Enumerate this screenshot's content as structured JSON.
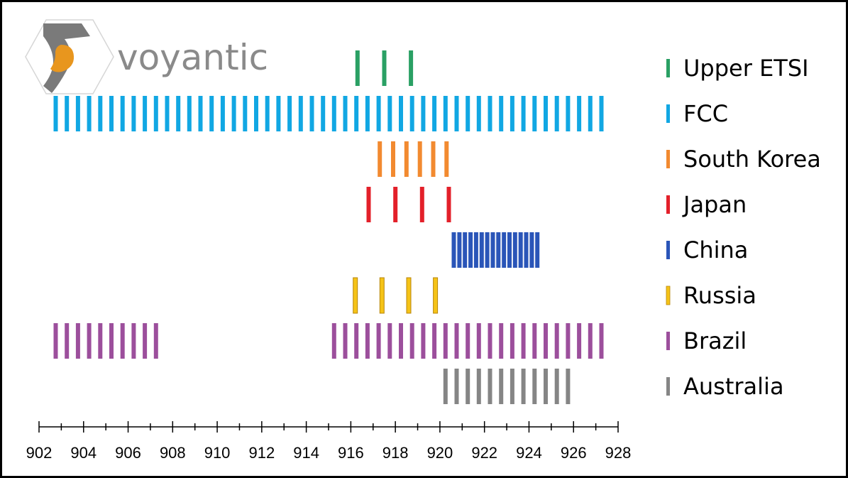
{
  "logo": {
    "text": "voyantic"
  },
  "chart_data": {
    "type": "bar",
    "title": "",
    "xlabel": "",
    "ylabel": "",
    "xlim": [
      902,
      928
    ],
    "x_ticks": [
      902,
      904,
      906,
      908,
      910,
      912,
      914,
      916,
      918,
      920,
      922,
      924,
      926,
      928
    ],
    "minor_tick_step": 1,
    "grid": false,
    "legend_position": "right",
    "series": [
      {
        "name": "Upper ETSI",
        "color": "#2aa064",
        "channels": [
          916.3,
          917.5,
          918.7
        ]
      },
      {
        "name": "FCC",
        "color": "#11a7e3",
        "channels": [
          902.75,
          903.25,
          903.75,
          904.25,
          904.75,
          905.25,
          905.75,
          906.25,
          906.75,
          907.25,
          907.75,
          908.25,
          908.75,
          909.25,
          909.75,
          910.25,
          910.75,
          911.25,
          911.75,
          912.25,
          912.75,
          913.25,
          913.75,
          914.25,
          914.75,
          915.25,
          915.75,
          916.25,
          916.75,
          917.25,
          917.75,
          918.25,
          918.75,
          919.25,
          919.75,
          920.25,
          920.75,
          921.25,
          921.75,
          922.25,
          922.75,
          923.25,
          923.75,
          924.25,
          924.75,
          925.25,
          925.75,
          926.25,
          926.75,
          927.25
        ]
      },
      {
        "name": "South Korea",
        "color": "#f28a30",
        "channels": [
          917.3,
          917.9,
          918.5,
          919.1,
          919.7,
          920.3
        ]
      },
      {
        "name": "Japan",
        "color": "#e3202a",
        "channels": [
          916.8,
          918.0,
          919.2,
          920.4
        ]
      },
      {
        "name": "China",
        "color": "#2a55b8",
        "channels": [
          920.625,
          920.875,
          921.125,
          921.375,
          921.625,
          921.875,
          922.125,
          922.375,
          922.625,
          922.875,
          923.125,
          923.375,
          923.625,
          923.875,
          924.125,
          924.375
        ]
      },
      {
        "name": "Russia",
        "color": "#f5c317",
        "outline": "#b8860b",
        "channels": [
          916.2,
          917.4,
          918.6,
          919.8
        ]
      },
      {
        "name": "Brazil",
        "color": "#9c4f9c",
        "channels": [
          902.75,
          903.25,
          903.75,
          904.25,
          904.75,
          905.25,
          905.75,
          906.25,
          906.75,
          907.25,
          915.25,
          915.75,
          916.25,
          916.75,
          917.25,
          917.75,
          918.25,
          918.75,
          919.25,
          919.75,
          920.25,
          920.75,
          921.25,
          921.75,
          922.25,
          922.75,
          923.25,
          923.75,
          924.25,
          924.75,
          925.25,
          925.75,
          926.25,
          926.75,
          927.25
        ]
      },
      {
        "name": "Australia",
        "color": "#858585",
        "channels": [
          920.25,
          920.75,
          921.25,
          921.75,
          922.25,
          922.75,
          923.25,
          923.75,
          924.25,
          924.75,
          925.25,
          925.75
        ]
      }
    ]
  }
}
